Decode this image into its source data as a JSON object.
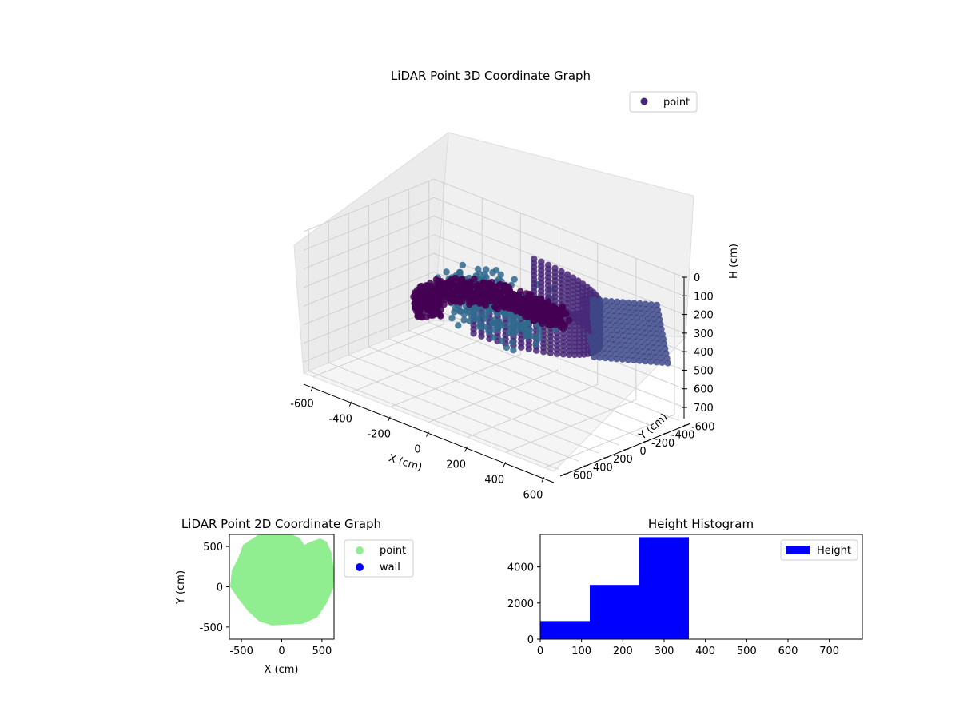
{
  "chart_data": [
    {
      "type": "scatter3d",
      "title": "LiDAR Point 3D Coordinate Graph",
      "xlabel": "X (cm)",
      "ylabel": "Y (cm)",
      "zlabel": "H (cm)",
      "xlim": [
        -650,
        650
      ],
      "ylim": [
        -650,
        650
      ],
      "zlim": [
        0,
        760
      ],
      "z_inverted": true,
      "xticks": [
        -600,
        -400,
        -200,
        0,
        200,
        400,
        600
      ],
      "yticks": [
        -600,
        -400,
        -200,
        0,
        200,
        400,
        600
      ],
      "zticks": [
        0,
        100,
        200,
        300,
        400,
        500,
        600,
        700
      ],
      "legend": {
        "position": "upper-right",
        "entries": [
          {
            "label": "point",
            "color": "#482878"
          }
        ]
      },
      "colormap": [
        "#440154",
        "#482878",
        "#3e4a89",
        "#31688e"
      ],
      "grid": true
    },
    {
      "type": "scatter",
      "title": "LiDAR Point 2D Coordinate Graph",
      "xlabel": "X (cm)",
      "ylabel": "Y (cm)",
      "xlim": [
        -650,
        650
      ],
      "ylim": [
        -650,
        650
      ],
      "xticks": [
        -500,
        0,
        500
      ],
      "yticks": [
        -500,
        0,
        500
      ],
      "series": [
        {
          "name": "point",
          "color": "#90ee90"
        },
        {
          "name": "wall",
          "color": "#0000ff"
        }
      ],
      "region": [
        [
          -480,
          520
        ],
        [
          -300,
          640
        ],
        [
          -100,
          660
        ],
        [
          120,
          650
        ],
        [
          220,
          610
        ],
        [
          280,
          520
        ],
        [
          360,
          560
        ],
        [
          480,
          600
        ],
        [
          560,
          560
        ],
        [
          620,
          420
        ],
        [
          650,
          200
        ],
        [
          640,
          -20
        ],
        [
          560,
          -200
        ],
        [
          440,
          -380
        ],
        [
          260,
          -460
        ],
        [
          60,
          -470
        ],
        [
          -120,
          -480
        ],
        [
          -280,
          -430
        ],
        [
          -420,
          -300
        ],
        [
          -560,
          -120
        ],
        [
          -640,
          0
        ],
        [
          -620,
          200
        ],
        [
          -540,
          360
        ]
      ],
      "legend": {
        "position": "outside-right"
      }
    },
    {
      "type": "bar",
      "title": "Height Histogram",
      "xlim": [
        0,
        780
      ],
      "ylim": [
        0,
        5800
      ],
      "xticks": [
        0,
        100,
        200,
        300,
        400,
        500,
        600,
        700
      ],
      "yticks": [
        0,
        2000,
        4000
      ],
      "bins": [
        {
          "start": 0,
          "end": 120,
          "value": 1000
        },
        {
          "start": 120,
          "end": 240,
          "value": 3000
        },
        {
          "start": 240,
          "end": 360,
          "value": 5650
        }
      ],
      "color": "#0000ff",
      "legend": {
        "position": "upper-right",
        "entries": [
          {
            "label": "Height",
            "color": "#0000ff"
          }
        ]
      }
    }
  ]
}
